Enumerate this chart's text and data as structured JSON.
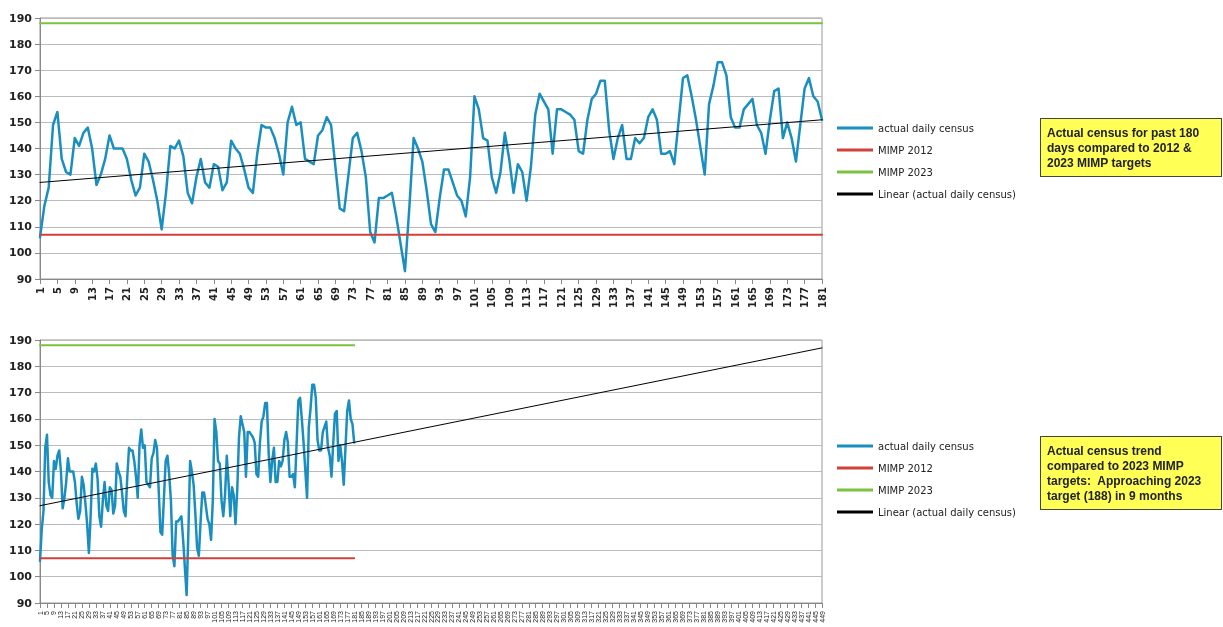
{
  "chart_data": [
    {
      "type": "line",
      "annotations": [
        "Actual census for past 180 days compared to 2012 & 2023 MIMP targets"
      ],
      "xlim": [
        1,
        181
      ],
      "xticks": [
        1,
        5,
        9,
        13,
        17,
        21,
        25,
        29,
        33,
        37,
        41,
        45,
        49,
        53,
        57,
        61,
        65,
        69,
        73,
        77,
        81,
        85,
        89,
        93,
        97,
        101,
        105,
        109,
        113,
        117,
        121,
        125,
        129,
        133,
        137,
        141,
        145,
        149,
        153,
        157,
        161,
        165,
        169,
        173,
        177,
        181
      ],
      "ylim": [
        90,
        190
      ],
      "yticks": [
        90,
        100,
        110,
        120,
        130,
        140,
        150,
        160,
        170,
        180,
        190
      ],
      "grid": "y",
      "legend": "right",
      "marker": "none",
      "series": [
        {
          "name": "actual daily census",
          "color": "#1a8fbf",
          "x": [
            1,
            2,
            3,
            4,
            5,
            6,
            7,
            8,
            9,
            10,
            11,
            12,
            13,
            14,
            15,
            16,
            17,
            18,
            20,
            21,
            22,
            23,
            24,
            25,
            26,
            27,
            28,
            29,
            30,
            31,
            32,
            33,
            34,
            35,
            36,
            37,
            38,
            39,
            40,
            41,
            42,
            43,
            44,
            45,
            46,
            47,
            48,
            49,
            50,
            51,
            52,
            53,
            54,
            55,
            56,
            57,
            58,
            59,
            60,
            61,
            62,
            64,
            65,
            66,
            67,
            68,
            70,
            71,
            73,
            74,
            75,
            76,
            77,
            78,
            79,
            80,
            81,
            82,
            83,
            85,
            86,
            87,
            88,
            89,
            90,
            91,
            92,
            93,
            94,
            95,
            96,
            97,
            98,
            99,
            100,
            101,
            102,
            103,
            104,
            105,
            106,
            107,
            108,
            109,
            110,
            111,
            112,
            113,
            114,
            115,
            116,
            117,
            118,
            119,
            120,
            121,
            122,
            123,
            124,
            125,
            126,
            127,
            128,
            129,
            130,
            131,
            132,
            133,
            134,
            135,
            136,
            137,
            138,
            139,
            140,
            141,
            142,
            143,
            144,
            145,
            146,
            147,
            149,
            150,
            151,
            152,
            154,
            155,
            156,
            157,
            158,
            159,
            160,
            161,
            162,
            163,
            164,
            165,
            166,
            167,
            168,
            169,
            170,
            171,
            172,
            173,
            174,
            175,
            176,
            177,
            178,
            179,
            180,
            181
          ],
          "values": [
            106,
            118,
            125,
            149,
            154,
            136,
            131,
            130,
            144,
            141,
            146,
            148,
            140,
            126,
            130,
            136,
            145,
            140,
            140,
            136,
            128,
            122,
            125,
            138,
            135,
            128,
            120,
            109,
            123,
            141,
            140,
            143,
            137,
            123,
            119,
            129,
            136,
            127,
            125,
            134,
            133,
            124,
            127,
            143,
            140,
            138,
            132,
            125,
            123,
            138,
            149,
            148,
            148,
            144,
            138,
            130,
            150,
            156,
            149,
            150,
            136,
            134,
            145,
            147,
            152,
            149,
            117,
            116,
            144,
            146,
            139,
            129,
            108,
            104,
            121,
            121,
            122,
            123,
            114,
            93,
            117,
            144,
            140,
            135,
            124,
            111,
            108,
            121,
            132,
            132,
            127,
            122,
            120,
            114,
            129,
            160,
            155,
            144,
            143,
            129,
            123,
            131,
            146,
            136,
            123,
            134,
            131,
            120,
            133,
            153,
            161,
            158,
            155,
            138,
            155,
            155,
            154,
            153,
            151,
            139,
            138,
            151,
            159,
            161,
            166,
            166,
            147,
            136,
            144,
            149,
            136,
            136,
            144,
            142,
            144,
            152,
            155,
            151,
            138,
            138,
            139,
            134,
            167,
            168,
            160,
            151,
            130,
            157,
            164,
            173,
            173,
            168,
            152,
            148,
            148,
            155,
            157,
            159,
            149,
            146,
            138,
            151,
            162,
            163,
            144,
            150,
            144,
            135,
            149,
            163,
            167,
            160,
            158,
            151
          ]
        },
        {
          "name": "MIMP 2012",
          "color": "#d0413c",
          "x": [
            1,
            181
          ],
          "values": [
            107,
            107
          ]
        },
        {
          "name": "MIMP 2023",
          "color": "#7cc242",
          "x": [
            1,
            181
          ],
          "values": [
            188,
            188
          ]
        },
        {
          "name": "Linear (actual daily census)",
          "color": "#000000",
          "x": [
            1,
            181
          ],
          "values": [
            127,
            151
          ]
        }
      ]
    },
    {
      "type": "line",
      "annotations": [
        "Actual census trend compared to 2023 MIMP targets:  Approaching 2023 target (188) in 9 months"
      ],
      "xlim": [
        1,
        449
      ],
      "xticks": [
        1,
        5,
        9,
        13,
        17,
        21,
        25,
        29,
        33,
        37,
        41,
        45,
        49,
        53,
        57,
        61,
        65,
        69,
        73,
        77,
        81,
        85,
        89,
        93,
        97,
        101,
        105,
        109,
        113,
        117,
        121,
        125,
        129,
        133,
        137,
        141,
        145,
        149,
        153,
        157,
        161,
        165,
        169,
        173,
        177,
        181,
        185,
        189,
        193,
        197,
        201,
        205,
        209,
        213,
        217,
        221,
        225,
        229,
        233,
        237,
        241,
        245,
        249,
        253,
        257,
        261,
        265,
        269,
        273,
        277,
        281,
        285,
        289,
        293,
        297,
        301,
        305,
        309,
        313,
        317,
        321,
        325,
        329,
        333,
        337,
        341,
        345,
        349,
        353,
        357,
        361,
        365,
        369,
        373,
        377,
        381,
        385,
        389,
        393,
        397,
        401,
        405,
        409,
        413,
        417,
        421,
        425,
        429,
        433,
        437,
        441,
        445,
        449
      ],
      "ylim": [
        90,
        190
      ],
      "yticks": [
        90,
        100,
        110,
        120,
        130,
        140,
        150,
        160,
        170,
        180,
        190
      ],
      "grid": "y",
      "legend": "right",
      "marker": "none",
      "series": [
        {
          "name": "actual daily census",
          "color": "#1a8fbf",
          "x": [
            1,
            2,
            3,
            4,
            5,
            6,
            7,
            8,
            9,
            10,
            11,
            12,
            13,
            14,
            15,
            16,
            17,
            18,
            20,
            21,
            22,
            23,
            24,
            25,
            26,
            27,
            28,
            29,
            30,
            31,
            32,
            33,
            34,
            35,
            36,
            37,
            38,
            39,
            40,
            41,
            42,
            43,
            44,
            45,
            46,
            47,
            48,
            49,
            50,
            51,
            52,
            53,
            54,
            55,
            56,
            57,
            58,
            59,
            60,
            61,
            62,
            64,
            65,
            66,
            67,
            68,
            70,
            71,
            73,
            74,
            75,
            76,
            77,
            78,
            79,
            80,
            81,
            82,
            83,
            85,
            86,
            87,
            88,
            89,
            90,
            91,
            92,
            93,
            94,
            95,
            96,
            97,
            98,
            99,
            100,
            101,
            102,
            103,
            104,
            105,
            106,
            107,
            108,
            109,
            110,
            111,
            112,
            113,
            114,
            115,
            116,
            117,
            118,
            119,
            120,
            121,
            122,
            123,
            124,
            125,
            126,
            127,
            128,
            129,
            130,
            131,
            132,
            133,
            134,
            135,
            136,
            137,
            138,
            139,
            140,
            141,
            142,
            143,
            144,
            145,
            146,
            147,
            149,
            150,
            151,
            152,
            154,
            155,
            156,
            157,
            158,
            159,
            160,
            161,
            162,
            163,
            164,
            165,
            166,
            167,
            168,
            169,
            170,
            171,
            172,
            173,
            174,
            175,
            176,
            177,
            178,
            179,
            180,
            181
          ],
          "values": [
            106,
            118,
            125,
            149,
            154,
            136,
            131,
            130,
            144,
            141,
            146,
            148,
            140,
            126,
            130,
            136,
            145,
            140,
            140,
            136,
            128,
            122,
            125,
            138,
            135,
            128,
            120,
            109,
            123,
            141,
            140,
            143,
            137,
            123,
            119,
            129,
            136,
            127,
            125,
            134,
            133,
            124,
            127,
            143,
            140,
            138,
            132,
            125,
            123,
            138,
            149,
            148,
            148,
            144,
            138,
            130,
            150,
            156,
            149,
            150,
            136,
            134,
            145,
            147,
            152,
            149,
            117,
            116,
            144,
            146,
            139,
            129,
            108,
            104,
            121,
            121,
            122,
            123,
            114,
            93,
            117,
            144,
            140,
            135,
            124,
            111,
            108,
            121,
            132,
            132,
            127,
            122,
            120,
            114,
            129,
            160,
            155,
            144,
            143,
            129,
            123,
            131,
            146,
            136,
            123,
            134,
            131,
            120,
            133,
            153,
            161,
            158,
            155,
            138,
            155,
            155,
            154,
            153,
            151,
            139,
            138,
            151,
            159,
            161,
            166,
            166,
            147,
            136,
            144,
            149,
            136,
            136,
            144,
            142,
            144,
            152,
            155,
            151,
            138,
            138,
            139,
            134,
            167,
            168,
            160,
            151,
            130,
            157,
            164,
            173,
            173,
            168,
            152,
            148,
            148,
            155,
            157,
            159,
            149,
            146,
            138,
            151,
            162,
            163,
            144,
            150,
            144,
            135,
            149,
            163,
            167,
            160,
            158,
            151
          ]
        },
        {
          "name": "MIMP 2012",
          "color": "#d0413c",
          "x": [
            1,
            181
          ],
          "values": [
            107,
            107
          ]
        },
        {
          "name": "MIMP 2023",
          "color": "#7cc242",
          "x": [
            1,
            181
          ],
          "values": [
            188,
            188
          ]
        },
        {
          "name": "Linear (actual daily census)",
          "color": "#000000",
          "x": [
            1,
            449
          ],
          "values": [
            127,
            187
          ]
        }
      ]
    }
  ]
}
